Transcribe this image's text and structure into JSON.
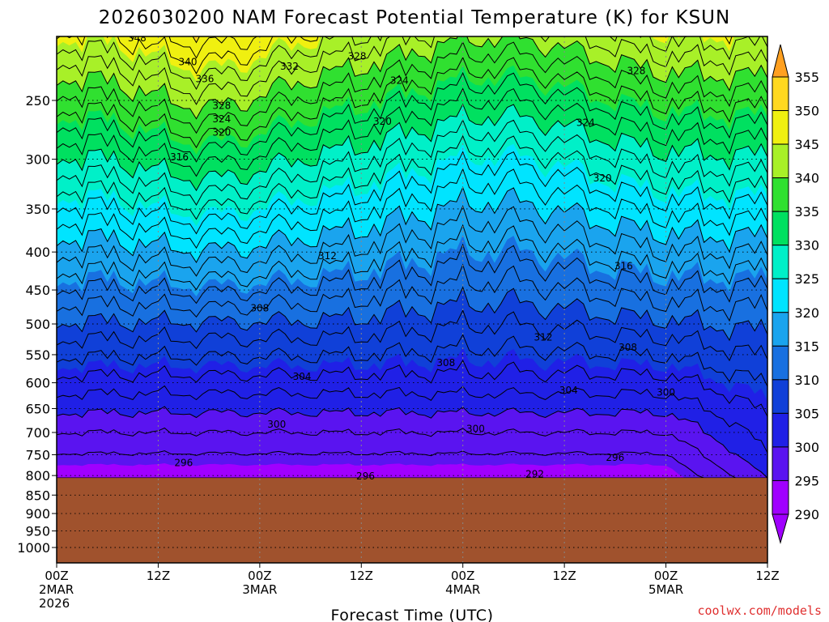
{
  "chart_data": {
    "type": "heatmap",
    "title": "2026030200 NAM Forecast Potential Temperature (K) for KSUN",
    "xlabel": "Forecast Time (UTC)",
    "ylabel": "",
    "y_scale": "pressure (hPa), reversed",
    "ylim": [
      1050,
      200
    ],
    "y_ticks": [
      250,
      300,
      350,
      400,
      450,
      500,
      550,
      600,
      650,
      700,
      750,
      800,
      850,
      900,
      950,
      1000
    ],
    "x_ticks": [
      {
        "hour": 0,
        "lines": [
          "00Z",
          "2MAR",
          "2026"
        ]
      },
      {
        "hour": 12,
        "lines": [
          "12Z"
        ]
      },
      {
        "hour": 24,
        "lines": [
          "00Z",
          "3MAR"
        ]
      },
      {
        "hour": 36,
        "lines": [
          "12Z"
        ]
      },
      {
        "hour": 48,
        "lines": [
          "00Z",
          "4MAR"
        ]
      },
      {
        "hour": 60,
        "lines": [
          "12Z"
        ]
      },
      {
        "hour": 72,
        "lines": [
          "00Z",
          "5MAR"
        ]
      },
      {
        "hour": 84,
        "lines": [
          "12Z"
        ]
      }
    ],
    "xlim": [
      0,
      84
    ],
    "colorbar": {
      "levels": [
        290,
        295,
        300,
        305,
        310,
        315,
        320,
        325,
        330,
        335,
        340,
        345,
        350,
        355
      ],
      "colors": [
        "#a000ff",
        "#5a14f0",
        "#2020e6",
        "#1040d8",
        "#1870e0",
        "#1aa4ee",
        "#00e4ff",
        "#00f0c8",
        "#00e060",
        "#30e030",
        "#a8f028",
        "#f0f010",
        "#ffd820",
        "#ffa020"
      ]
    },
    "terrain": {
      "surface_hPa": 806,
      "color": "#a0522d"
    },
    "grid": true,
    "contour_interval": 2,
    "contour_labels": [
      {
        "value": 348,
        "hour": 9.5,
        "hPa": 206
      },
      {
        "value": 340,
        "hour": 15.5,
        "hPa": 222
      },
      {
        "value": 336,
        "hour": 17.5,
        "hPa": 234
      },
      {
        "value": 332,
        "hour": 27.5,
        "hPa": 225
      },
      {
        "value": 328,
        "hour": 35.5,
        "hPa": 218
      },
      {
        "value": 324,
        "hour": 40.5,
        "hPa": 235
      },
      {
        "value": 328,
        "hour": 19.5,
        "hPa": 254
      },
      {
        "value": 324,
        "hour": 19.5,
        "hPa": 265
      },
      {
        "value": 320,
        "hour": 19.5,
        "hPa": 276
      },
      {
        "value": 320,
        "hour": 38.5,
        "hPa": 267
      },
      {
        "value": 316,
        "hour": 14.5,
        "hPa": 298
      },
      {
        "value": 324,
        "hour": 62.5,
        "hPa": 268
      },
      {
        "value": 328,
        "hour": 68.5,
        "hPa": 228
      },
      {
        "value": 320,
        "hour": 64.5,
        "hPa": 318
      },
      {
        "value": 312,
        "hour": 32,
        "hPa": 405
      },
      {
        "value": 316,
        "hour": 67,
        "hPa": 418
      },
      {
        "value": 308,
        "hour": 24,
        "hPa": 476
      },
      {
        "value": 312,
        "hour": 57.5,
        "hPa": 521
      },
      {
        "value": 308,
        "hour": 67.5,
        "hPa": 538
      },
      {
        "value": 308,
        "hour": 46,
        "hPa": 564
      },
      {
        "value": 304,
        "hour": 29,
        "hPa": 589
      },
      {
        "value": 304,
        "hour": 60.5,
        "hPa": 614
      },
      {
        "value": 300,
        "hour": 72,
        "hPa": 618
      },
      {
        "value": 300,
        "hour": 26,
        "hPa": 683
      },
      {
        "value": 300,
        "hour": 49.5,
        "hPa": 692
      },
      {
        "value": 296,
        "hour": 66,
        "hPa": 757
      },
      {
        "value": 296,
        "hour": 15,
        "hPa": 769
      },
      {
        "value": 292,
        "hour": 56.5,
        "hPa": 797
      },
      {
        "value": 296,
        "hour": 36.5,
        "hPa": 802
      }
    ]
  },
  "watermark": "coolwx.com/models"
}
